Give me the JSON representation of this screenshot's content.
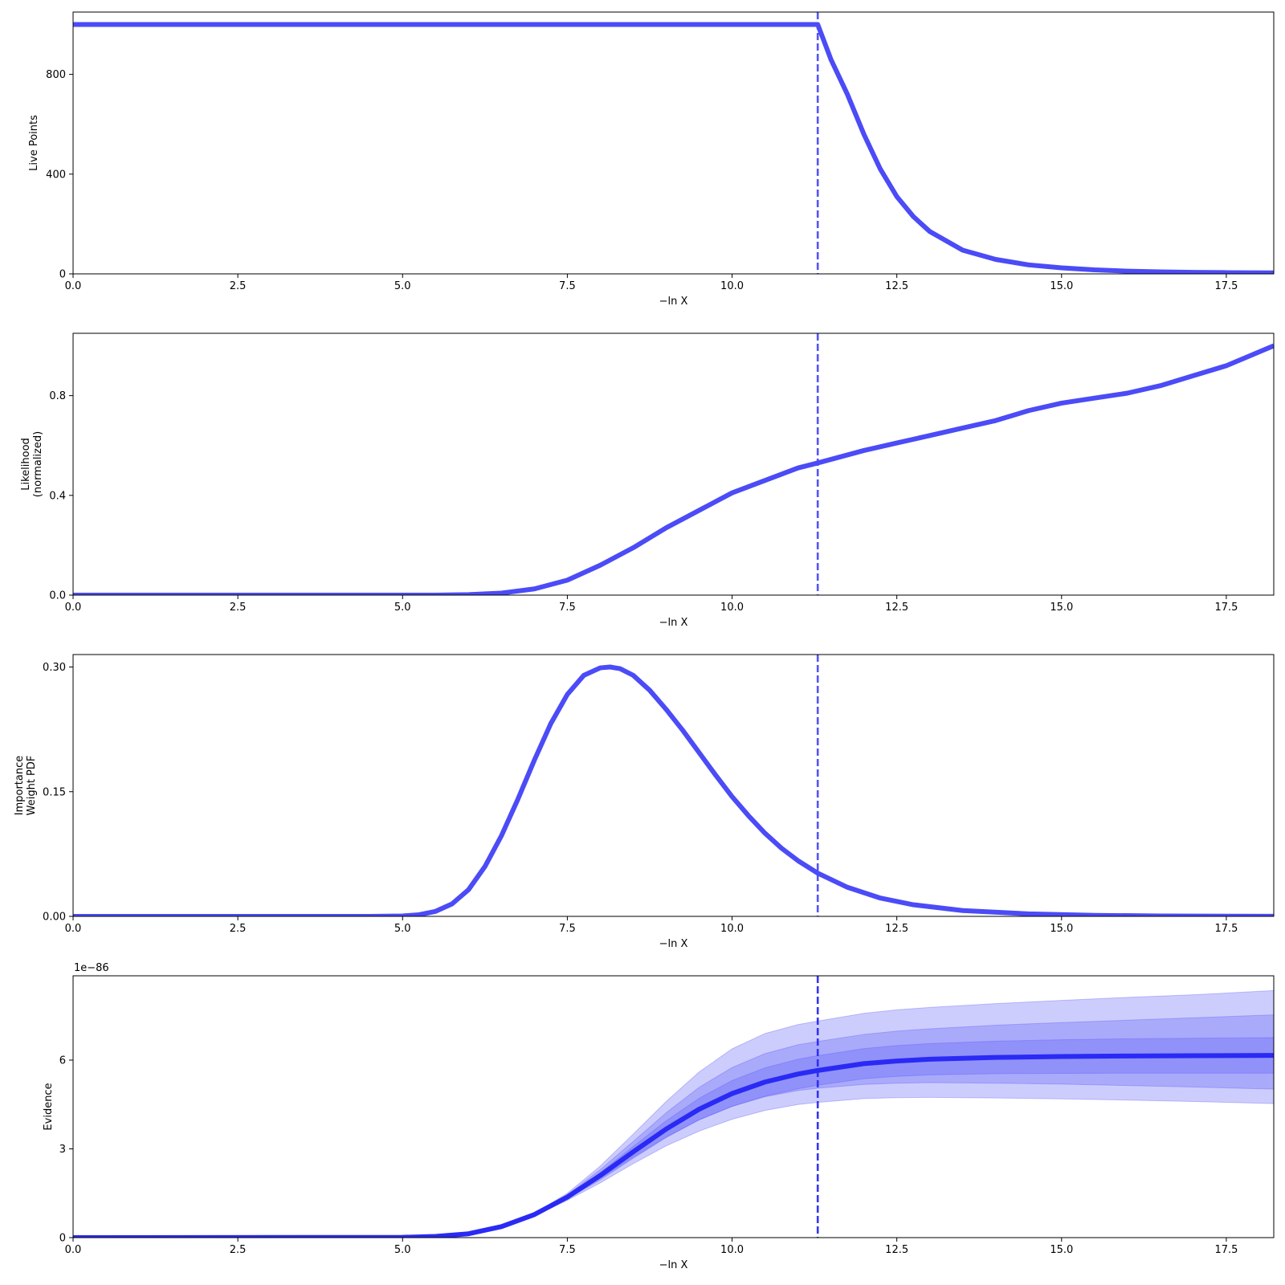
{
  "chart_data": [
    {
      "type": "line",
      "xlabel": "−ln X",
      "ylabel": "Live Points",
      "xlim": [
        0,
        18.22
      ],
      "ylim": [
        0,
        1050
      ],
      "xticks": [
        0,
        2.5,
        5,
        7.5,
        10,
        12.5,
        15,
        17.5
      ],
      "xtick_labels": [
        "0.0",
        "2.5",
        "5.0",
        "7.5",
        "10.0",
        "12.5",
        "15.0",
        "17.5"
      ],
      "yticks": [
        0,
        400,
        800
      ],
      "ytick_labels": [
        "0",
        "400",
        "800"
      ],
      "vline_x": 11.3,
      "color": "#4b4bf7",
      "series": [
        {
          "x": [
            0,
            11.3,
            11.5,
            11.75,
            12.0,
            12.25,
            12.5,
            12.75,
            13.0,
            13.5,
            14.0,
            14.5,
            15.0,
            15.5,
            16.0,
            16.5,
            17.0,
            17.5,
            18.22
          ],
          "values": [
            1000,
            1000,
            860,
            720,
            560,
            420,
            310,
            230,
            170,
            95,
            58,
            36,
            24,
            16,
            11,
            8,
            6,
            5,
            4
          ]
        }
      ]
    },
    {
      "type": "line",
      "xlabel": "−ln X",
      "ylabel": "Likelihood\n(normalized)",
      "xlim": [
        0,
        18.22
      ],
      "ylim": [
        0,
        1.05
      ],
      "xticks": [
        0,
        2.5,
        5,
        7.5,
        10,
        12.5,
        15,
        17.5
      ],
      "xtick_labels": [
        "0.0",
        "2.5",
        "5.0",
        "7.5",
        "10.0",
        "12.5",
        "15.0",
        "17.5"
      ],
      "yticks": [
        0,
        0.4,
        0.8
      ],
      "ytick_labels": [
        "0.0",
        "0.4",
        "0.8"
      ],
      "vline_x": 11.3,
      "color": "#4b4bf7",
      "series": [
        {
          "x": [
            0,
            5.5,
            6.0,
            6.5,
            7.0,
            7.5,
            8.0,
            8.5,
            9.0,
            9.5,
            10.0,
            10.5,
            11.0,
            11.3,
            12.0,
            12.5,
            13.0,
            13.5,
            14.0,
            14.5,
            15.0,
            15.5,
            16.0,
            16.5,
            17.0,
            17.5,
            18.22
          ],
          "values": [
            0,
            0,
            0.002,
            0.008,
            0.025,
            0.06,
            0.12,
            0.19,
            0.27,
            0.34,
            0.41,
            0.46,
            0.51,
            0.53,
            0.58,
            0.61,
            0.64,
            0.67,
            0.7,
            0.74,
            0.77,
            0.79,
            0.81,
            0.84,
            0.88,
            0.92,
            1.0
          ]
        }
      ]
    },
    {
      "type": "line",
      "xlabel": "−ln X",
      "ylabel": "Importance\nWeight PDF",
      "xlim": [
        0,
        18.22
      ],
      "ylim": [
        0,
        0.315
      ],
      "xticks": [
        0,
        2.5,
        5,
        7.5,
        10,
        12.5,
        15,
        17.5
      ],
      "xtick_labels": [
        "0.0",
        "2.5",
        "5.0",
        "7.5",
        "10.0",
        "12.5",
        "15.0",
        "17.5"
      ],
      "yticks": [
        0,
        0.15,
        0.3
      ],
      "ytick_labels": [
        "0.00",
        "0.15",
        "0.30"
      ],
      "vline_x": 11.3,
      "color": "#4b4bf7",
      "series": [
        {
          "x": [
            0,
            4.5,
            5.0,
            5.25,
            5.5,
            5.75,
            6.0,
            6.25,
            6.5,
            6.75,
            7.0,
            7.25,
            7.5,
            7.75,
            8.0,
            8.15,
            8.3,
            8.5,
            8.75,
            9.0,
            9.25,
            9.5,
            9.75,
            10.0,
            10.25,
            10.5,
            10.75,
            11.0,
            11.3,
            11.75,
            12.25,
            12.75,
            13.5,
            14.5,
            15.5,
            16.5,
            18.22
          ],
          "values": [
            0,
            0,
            0.0005,
            0.002,
            0.006,
            0.015,
            0.032,
            0.06,
            0.097,
            0.141,
            0.188,
            0.232,
            0.267,
            0.29,
            0.299,
            0.3,
            0.298,
            0.29,
            0.272,
            0.249,
            0.224,
            0.197,
            0.17,
            0.144,
            0.121,
            0.1,
            0.082,
            0.067,
            0.052,
            0.035,
            0.022,
            0.014,
            0.007,
            0.003,
            0.0012,
            0.0005,
            0.0001
          ]
        }
      ]
    },
    {
      "type": "area",
      "xlabel": "−ln X",
      "ylabel": "Evidence",
      "offset_text": "1e−86",
      "xlim": [
        0,
        18.22
      ],
      "ylim": [
        0,
        8.85
      ],
      "xticks": [
        0,
        2.5,
        5,
        7.5,
        10,
        12.5,
        15,
        17.5
      ],
      "xtick_labels": [
        "0.0",
        "2.5",
        "5.0",
        "7.5",
        "10.0",
        "12.5",
        "15.0",
        "17.5"
      ],
      "yticks": [
        0,
        3,
        6
      ],
      "ytick_labels": [
        "0",
        "3",
        "6"
      ],
      "vline_x": 11.3,
      "line_color": "#2a2af5",
      "band_color": "#5a5afa",
      "x": [
        0,
        5.0,
        5.5,
        6.0,
        6.5,
        7.0,
        7.5,
        8.0,
        8.5,
        9.0,
        9.5,
        10.0,
        10.5,
        11.0,
        11.3,
        12.0,
        12.5,
        13.0,
        14.0,
        15.0,
        16.0,
        17.0,
        18.22
      ],
      "center": [
        0,
        0.01,
        0.04,
        0.13,
        0.37,
        0.78,
        1.37,
        2.1,
        2.9,
        3.67,
        4.34,
        4.87,
        5.26,
        5.53,
        5.65,
        5.88,
        5.97,
        6.03,
        6.09,
        6.12,
        6.14,
        6.15,
        6.16
      ],
      "bands": [
        {
          "upper": [
            0,
            0.01,
            0.04,
            0.13,
            0.38,
            0.82,
            1.5,
            2.42,
            3.5,
            4.6,
            5.6,
            6.38,
            6.9,
            7.2,
            7.32,
            7.58,
            7.7,
            7.78,
            7.91,
            8.02,
            8.12,
            8.21,
            8.35
          ],
          "lower": [
            0,
            0.01,
            0.04,
            0.12,
            0.35,
            0.74,
            1.26,
            1.85,
            2.5,
            3.1,
            3.6,
            4.0,
            4.3,
            4.5,
            4.57,
            4.7,
            4.73,
            4.74,
            4.72,
            4.69,
            4.65,
            4.6,
            4.53
          ]
        },
        {
          "upper": [
            0,
            0.01,
            0.04,
            0.13,
            0.37,
            0.8,
            1.45,
            2.3,
            3.25,
            4.22,
            5.08,
            5.75,
            6.22,
            6.52,
            6.63,
            6.87,
            6.98,
            7.06,
            7.18,
            7.27,
            7.35,
            7.43,
            7.53
          ],
          "lower": [
            0,
            0.01,
            0.04,
            0.12,
            0.36,
            0.76,
            1.31,
            1.95,
            2.68,
            3.38,
            3.98,
            4.44,
            4.76,
            4.97,
            5.05,
            5.18,
            5.22,
            5.24,
            5.22,
            5.19,
            5.14,
            5.09,
            5.02
          ]
        },
        {
          "upper": [
            0,
            0.01,
            0.04,
            0.13,
            0.37,
            0.79,
            1.41,
            2.2,
            3.08,
            3.95,
            4.71,
            5.31,
            5.74,
            6.03,
            6.15,
            6.39,
            6.49,
            6.56,
            6.64,
            6.69,
            6.72,
            6.74,
            6.76
          ],
          "lower": [
            0,
            0.01,
            0.04,
            0.13,
            0.36,
            0.77,
            1.33,
            2.0,
            2.72,
            3.4,
            3.98,
            4.43,
            4.78,
            5.03,
            5.15,
            5.37,
            5.45,
            5.5,
            5.54,
            5.55,
            5.56,
            5.56,
            5.56
          ]
        }
      ]
    }
  ]
}
